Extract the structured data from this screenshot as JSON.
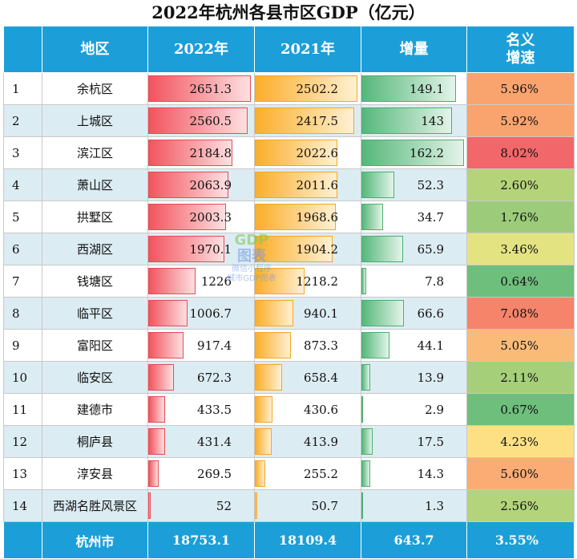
{
  "title": "2022年杭州各县市区GDP（亿元）",
  "watermark": {
    "line1": "GDP",
    "line2": "图表",
    "line3": "微信小程序",
    "line4": "城市GDP图表"
  },
  "header": {
    "region": "地区",
    "y2022": "2022年",
    "y2021": "2021年",
    "increase": "增量",
    "growth_line1": "名义",
    "growth_line2": "增速"
  },
  "colors": {
    "header_bg": "#1c9fd8",
    "bar_2022": "#f2545e",
    "bar_2021": "#fbae2a",
    "bar_increase": "#56b77a"
  },
  "scales": {
    "max_2022": 2651.3,
    "max_2021": 2502.2,
    "max_increase": 162.2
  },
  "chart_data": {
    "type": "table",
    "title": "2022年杭州各县市区GDP（亿元）",
    "columns": [
      "",
      "地区",
      "2022年",
      "2021年",
      "增量",
      "名义增速"
    ],
    "rows": [
      {
        "rank": "1",
        "region": "余杭区",
        "y2022": 2651.3,
        "y2022_text": "2651.3",
        "y2021": 2502.2,
        "y2021_text": "2502.2",
        "increase": 149.1,
        "increase_text": "149.1",
        "growth": "5.96%",
        "growth_color": "#f9a46f"
      },
      {
        "rank": "2",
        "region": "上城区",
        "y2022": 2560.5,
        "y2022_text": "2560.5",
        "y2021": 2417.5,
        "y2021_text": "2417.5",
        "increase": 143,
        "increase_text": "143",
        "growth": "5.92%",
        "growth_color": "#f9a46f"
      },
      {
        "rank": "3",
        "region": "滨江区",
        "y2022": 2184.8,
        "y2022_text": "2184.8",
        "y2021": 2022.6,
        "y2021_text": "2022.6",
        "increase": 162.2,
        "increase_text": "162.2",
        "growth": "8.02%",
        "growth_color": "#f2676a"
      },
      {
        "rank": "4",
        "region": "萧山区",
        "y2022": 2063.9,
        "y2022_text": "2063.9",
        "y2021": 2011.6,
        "y2021_text": "2011.6",
        "increase": 52.3,
        "increase_text": "52.3",
        "growth": "2.60%",
        "growth_color": "#b5d47a"
      },
      {
        "rank": "5",
        "region": "拱墅区",
        "y2022": 2003.3,
        "y2022_text": "2003.3",
        "y2021": 1968.6,
        "y2021_text": "1968.6",
        "increase": 34.7,
        "increase_text": "34.7",
        "growth": "1.76%",
        "growth_color": "#9ccc79"
      },
      {
        "rank": "6",
        "region": "西湖区",
        "y2022": 1970.1,
        "y2022_text": "1970.1",
        "y2021": 1904.2,
        "y2021_text": "1904.2",
        "increase": 65.9,
        "increase_text": "65.9",
        "growth": "3.46%",
        "growth_color": "#e4e382"
      },
      {
        "rank": "7",
        "region": "钱塘区",
        "y2022": 1226,
        "y2022_text": "1226",
        "y2021": 1218.2,
        "y2021_text": "1218.2",
        "increase": 7.8,
        "increase_text": "7.8",
        "growth": "0.64%",
        "growth_color": "#6ebf7c"
      },
      {
        "rank": "8",
        "region": "临平区",
        "y2022": 1006.7,
        "y2022_text": "1006.7",
        "y2021": 940.1,
        "y2021_text": "940.1",
        "increase": 66.6,
        "increase_text": "66.6",
        "growth": "7.08%",
        "growth_color": "#f5846b"
      },
      {
        "rank": "9",
        "region": "富阳区",
        "y2022": 917.4,
        "y2022_text": "917.4",
        "y2021": 873.3,
        "y2021_text": "873.3",
        "increase": 44.1,
        "increase_text": "44.1",
        "growth": "5.05%",
        "growth_color": "#fbbb78"
      },
      {
        "rank": "10",
        "region": "临安区",
        "y2022": 672.3,
        "y2022_text": "672.3",
        "y2021": 658.4,
        "y2021_text": "658.4",
        "increase": 13.9,
        "increase_text": "13.9",
        "growth": "2.11%",
        "growth_color": "#a6cf7a"
      },
      {
        "rank": "11",
        "region": "建德市",
        "y2022": 433.5,
        "y2022_text": "433.5",
        "y2021": 430.6,
        "y2021_text": "430.6",
        "increase": 2.9,
        "increase_text": "2.9",
        "growth": "0.67%",
        "growth_color": "#6ebf7c"
      },
      {
        "rank": "12",
        "region": "桐庐县",
        "y2022": 431.4,
        "y2022_text": "431.4",
        "y2021": 413.9,
        "y2021_text": "413.9",
        "increase": 17.5,
        "increase_text": "17.5",
        "growth": "4.23%",
        "growth_color": "#fde083"
      },
      {
        "rank": "13",
        "region": "淳安县",
        "y2022": 269.5,
        "y2022_text": "269.5",
        "y2021": 255.2,
        "y2021_text": "255.2",
        "increase": 14.3,
        "increase_text": "14.3",
        "growth": "5.60%",
        "growth_color": "#faac74"
      },
      {
        "rank": "14",
        "region": "西湖名胜风景区",
        "y2022": 52,
        "y2022_text": "52",
        "y2021": 50.7,
        "y2021_text": "50.7",
        "increase": 1.3,
        "increase_text": "1.3",
        "growth": "2.56%",
        "growth_color": "#b3d47a"
      }
    ],
    "total": {
      "region": "杭州市",
      "y2022": "18753.1",
      "y2021": "18109.4",
      "increase": "643.7",
      "growth": "3.55%"
    }
  }
}
